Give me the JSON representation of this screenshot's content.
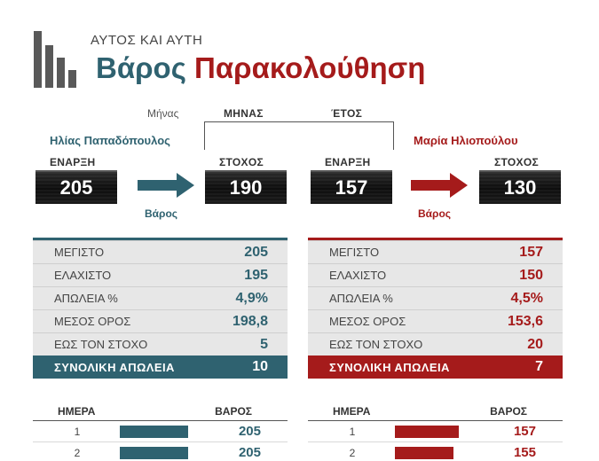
{
  "header": {
    "subtitle": "ΑΥΤΟΣ ΚΑΙ ΑΥΤΗ",
    "title_part1": "Βάρος",
    "title_part2": "Παρακολούθηση"
  },
  "period": {
    "label": "Μήνας",
    "month": "ΜΗΝΑΣ",
    "year": "ΈΤΟΣ"
  },
  "person1": {
    "name": "Ηλίας Παπαδόπουλος",
    "start_label": "ΕΝΑΡΞΗ",
    "start": "205",
    "target_label": "ΣΤΟΧΟΣ",
    "target": "190",
    "arrow_label": "Βάρος",
    "stats": [
      {
        "k": "ΜΕΓΙΣΤΟ",
        "v": "205"
      },
      {
        "k": "ΕΛΑΧΙΣΤΟ",
        "v": "195"
      },
      {
        "k": "ΑΠΩΛΕΙΑ %",
        "v": "4,9%"
      },
      {
        "k": "ΜΕΣΟΣ ΟΡΟΣ",
        "v": "198,8"
      },
      {
        "k": "ΕΩΣ ΤΟΝ ΣΤΟΧΟ",
        "v": "5"
      }
    ],
    "total_label": "ΣΥΝΟΛΙΚΗ ΑΠΩΛΕΙΑ",
    "total": "10",
    "daily_header_day": "ΗΜΕΡΑ",
    "daily_header_weight": "ΒΑΡΟΣ",
    "daily": [
      {
        "day": "1",
        "weight": "205",
        "bar_fraction": 0.27
      },
      {
        "day": "2",
        "weight": "205",
        "bar_fraction": 0.27
      }
    ]
  },
  "person2": {
    "name": "Μαρία Ηλιοπούλου",
    "start_label": "ΕΝΑΡΞΗ",
    "start": "157",
    "target_label": "ΣΤΟΧΟΣ",
    "target": "130",
    "arrow_label": "Βάρος",
    "stats": [
      {
        "k": "ΜΕΓΙΣΤΟ",
        "v": "157"
      },
      {
        "k": "ΕΛΑΧΙΣΤΟ",
        "v": "150"
      },
      {
        "k": "ΑΠΩΛΕΙΑ %",
        "v": "4,5%"
      },
      {
        "k": "ΜΕΣΟΣ ΟΡΟΣ",
        "v": "153,6"
      },
      {
        "k": "ΕΩΣ ΤΟΝ ΣΤΟΧΟ",
        "v": "20"
      }
    ],
    "total_label": "ΣΥΝΟΛΙΚΗ ΑΠΩΛΕΙΑ",
    "total": "7",
    "daily_header_day": "ΗΜΕΡΑ",
    "daily_header_weight": "ΒΑΡΟΣ",
    "daily": [
      {
        "day": "1",
        "weight": "157",
        "bar_fraction": 0.25
      },
      {
        "day": "2",
        "weight": "155",
        "bar_fraction": 0.23
      }
    ]
  },
  "colors": {
    "teal": "#2f6270",
    "red": "#a51b1b"
  }
}
